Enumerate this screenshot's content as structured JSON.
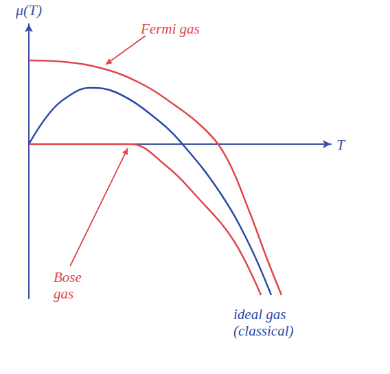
{
  "chart_data": {
    "type": "line",
    "xlabel": "T",
    "ylabel": "μ(T)",
    "xlim": [
      0,
      4.4
    ],
    "ylim": [
      -2.25,
      1.75
    ],
    "tick_labels": false,
    "grid": false,
    "series": [
      {
        "name": "Fermi gas",
        "color": "#e0474c",
        "x": [
          0,
          0.5,
          1.08,
          1.6,
          2.08,
          2.58,
          2.88,
          3.18,
          3.48,
          3.68
        ],
        "values": [
          1.22,
          1.2,
          1.1,
          0.9,
          0.6,
          0.2,
          -0.2,
          -0.9,
          -1.7,
          -2.2
        ]
      },
      {
        "name": "ideal gas (classical)",
        "color": "#2b4aa8",
        "x": [
          0,
          0.3,
          0.58,
          0.88,
          1.28,
          1.88,
          2.28,
          2.78,
          3.18,
          3.53
        ],
        "values": [
          0,
          0.45,
          0.7,
          0.82,
          0.75,
          0.35,
          -0.05,
          -0.7,
          -1.4,
          -2.2
        ]
      },
      {
        "name": "Bose gas",
        "color": "#e0474c",
        "x": [
          0,
          0.5,
          1.0,
          1.48,
          1.98,
          2.48,
          2.98,
          3.38
        ],
        "values": [
          0,
          0,
          0,
          0,
          -0.3,
          -0.8,
          -1.4,
          -2.2
        ]
      }
    ]
  }
}
